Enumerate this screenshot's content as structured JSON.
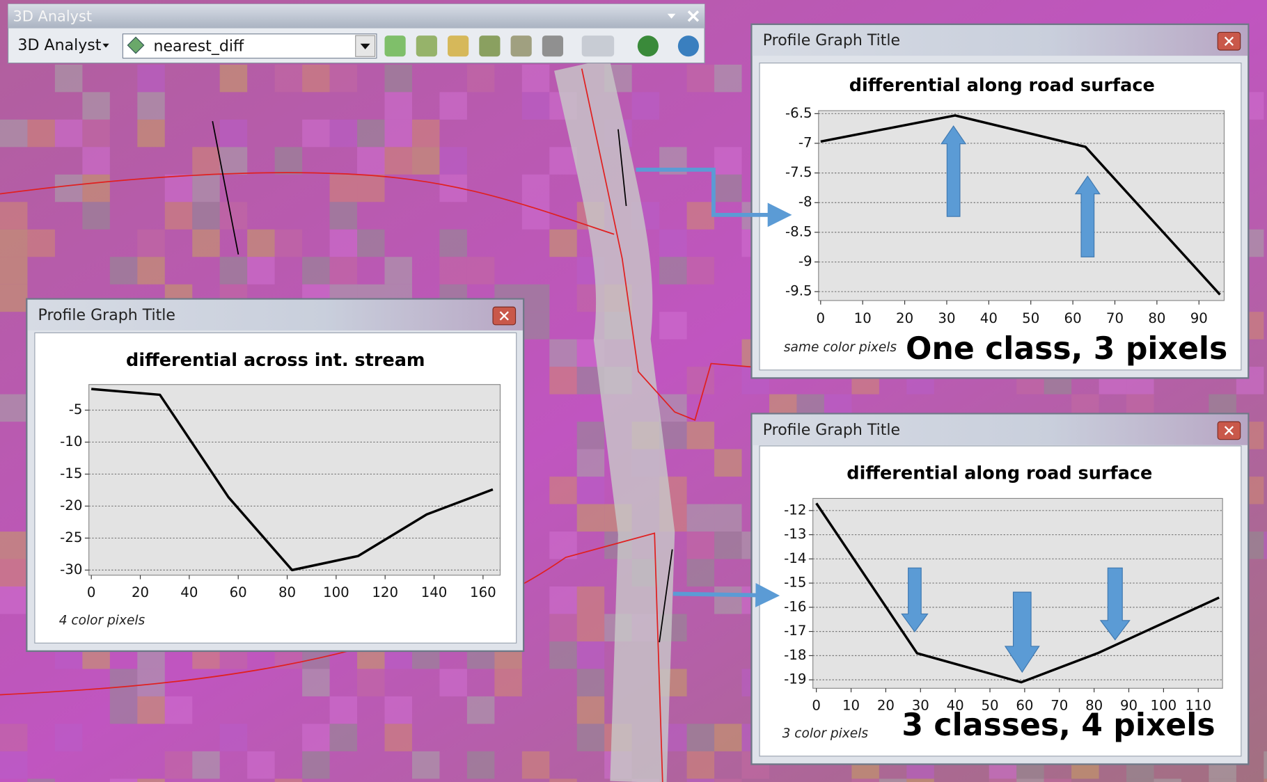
{
  "toolbar": {
    "title": "3D Analyst",
    "menu": "3D Analyst",
    "layer": "nearest_diff"
  },
  "windows": [
    {
      "title": "Profile Graph Title",
      "note": "same color pixels",
      "overlay": "One class, 3 pixels"
    },
    {
      "title": "Profile Graph Title",
      "note": "4 color pixels"
    },
    {
      "title": "Profile Graph Title",
      "note": "3 color pixels",
      "overlay": "3 classes, 4 pixels"
    }
  ],
  "chart_data": [
    {
      "type": "line",
      "title": "differential along road surface",
      "x": [
        0,
        32,
        63,
        95
      ],
      "values": [
        -6.97,
        -6.53,
        -7.06,
        -9.55
      ],
      "color": "#000000",
      "xlim": [
        -0.5,
        96
      ],
      "xticks": [
        0,
        10,
        20,
        30,
        40,
        50,
        60,
        70,
        80,
        90
      ],
      "ylim": [
        -9.65,
        -6.45
      ],
      "yticks": [
        -6.5,
        -7,
        -7.5,
        -8,
        -8.5,
        -9,
        -9.5
      ],
      "grid": true
    },
    {
      "type": "line",
      "title": "differential across int. stream",
      "x": [
        0,
        28,
        56,
        82,
        109,
        137,
        164
      ],
      "values": [
        -1.7,
        -2.6,
        -18.6,
        -30,
        -27.8,
        -21.3,
        -17.4
      ],
      "color": "#000000",
      "xlim": [
        -1,
        167
      ],
      "xticks": [
        0,
        20,
        40,
        60,
        80,
        100,
        120,
        140,
        160
      ],
      "ylim": [
        -30.8,
        -1
      ],
      "yticks": [
        -5,
        -10,
        -15,
        -20,
        -25,
        -30
      ],
      "grid": true
    },
    {
      "type": "line",
      "title": "differential along road surface",
      "x": [
        0,
        29,
        59,
        81,
        116
      ],
      "values": [
        -11.7,
        -17.9,
        -19.1,
        -17.9,
        -15.6
      ],
      "color": "#000000",
      "xlim": [
        -1,
        117
      ],
      "xticks": [
        0,
        10,
        20,
        30,
        40,
        50,
        60,
        70,
        80,
        90,
        100,
        110
      ],
      "ylim": [
        -19.35,
        -11.5
      ],
      "yticks": [
        -12,
        -13,
        -14,
        -15,
        -16,
        -17,
        -18,
        -19
      ],
      "grid": true
    }
  ]
}
